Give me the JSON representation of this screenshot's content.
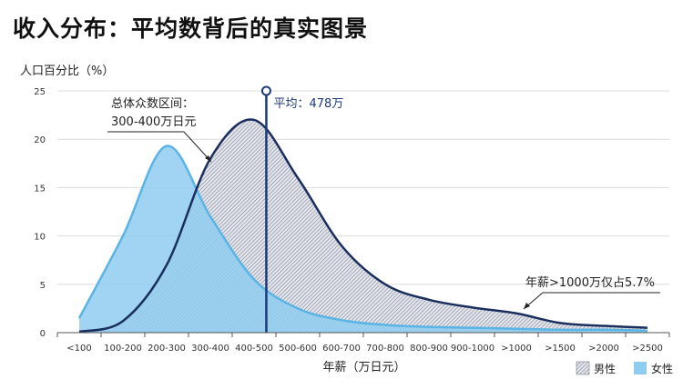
{
  "chart_data": {
    "type": "area",
    "title": "收入分布：平均数背后的真实图景",
    "ylabel": "人口百分比（%）",
    "xlabel": "年薪（万日元）",
    "ylim": [
      0,
      25
    ],
    "yticks": [
      0,
      5,
      10,
      15,
      20,
      25
    ],
    "grid": true,
    "legend_placement": "bottom-right",
    "categories": [
      "<100",
      "100-200",
      "200-300",
      "300-400",
      "400-500",
      "500-600",
      "600-700",
      "700-800",
      "800-900",
      "900-1000",
      ">1000",
      ">1500",
      ">2000",
      ">2500"
    ],
    "series": [
      {
        "name": "男性",
        "color": "#1b2f5e",
        "fill": "hatch-gray",
        "values": [
          0.1,
          1.2,
          7,
          18,
          22,
          16,
          9,
          5,
          3.4,
          2.6,
          2.0,
          1.0,
          0.7,
          0.5
        ]
      },
      {
        "name": "女性",
        "color": "#5ab4e5",
        "fill": "#8fcdf0",
        "values": [
          1.5,
          10,
          19.3,
          12,
          5.5,
          2.5,
          1.3,
          0.8,
          0.6,
          0.5,
          0.4,
          0.3,
          0.3,
          0.2
        ]
      }
    ],
    "mean": {
      "value": 478,
      "label": "平均：478万",
      "color": "#1b3a7a"
    },
    "annotations": {
      "mode": {
        "line1": "总体众数区间：",
        "line2": "300-400万日元"
      },
      "top": "年薪>1000万仅占5.7%"
    }
  }
}
